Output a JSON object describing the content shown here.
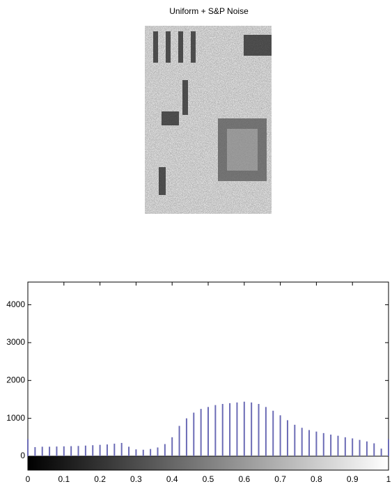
{
  "chart_data": {
    "type": "stem",
    "title": "Uniform + S&P Noise",
    "x": [
      0,
      0.02,
      0.04,
      0.06,
      0.08,
      0.1,
      0.12,
      0.14,
      0.16,
      0.18,
      0.2,
      0.22,
      0.24,
      0.26,
      0.28,
      0.3,
      0.32,
      0.34,
      0.36,
      0.38,
      0.4,
      0.42,
      0.44,
      0.46,
      0.48,
      0.5,
      0.52,
      0.54,
      0.56,
      0.58,
      0.6,
      0.62,
      0.64,
      0.66,
      0.68,
      0.7,
      0.72,
      0.74,
      0.76,
      0.78,
      0.8,
      0.82,
      0.84,
      0.86,
      0.88,
      0.9,
      0.92,
      0.94,
      0.96,
      0.98,
      1
    ],
    "values": [
      450,
      240,
      250,
      250,
      255,
      260,
      265,
      270,
      280,
      290,
      300,
      310,
      330,
      350,
      250,
      180,
      170,
      190,
      230,
      320,
      500,
      800,
      1000,
      1150,
      1250,
      1300,
      1350,
      1380,
      1400,
      1420,
      1440,
      1420,
      1380,
      1300,
      1200,
      1080,
      950,
      830,
      750,
      690,
      650,
      610,
      570,
      540,
      500,
      470,
      430,
      390,
      340,
      200,
      450
    ],
    "color": "#6b6bb5",
    "xlim": [
      0,
      1
    ],
    "ylim": [
      0,
      4600
    ],
    "xticks": [
      0,
      0.1,
      0.2,
      0.3,
      0.4,
      0.5,
      0.6,
      0.7,
      0.8,
      0.9,
      1
    ],
    "yticks": [
      0,
      1000,
      2000,
      3000,
      4000
    ]
  }
}
